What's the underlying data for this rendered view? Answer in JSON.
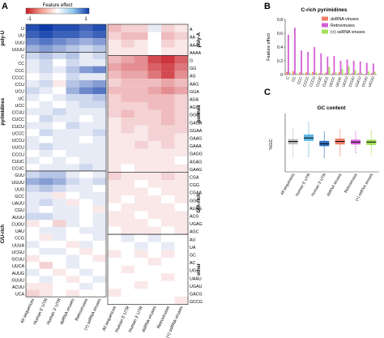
{
  "panel_letters": {
    "a": "A",
    "b": "B",
    "c": "C"
  },
  "colorbar": {
    "label": "Feature effect",
    "min_label": "-1",
    "max_label": "1"
  },
  "heatmap_columns": [
    "All sequences",
    "Human 5' UTR",
    "Human 3' UTR",
    "dsRNA viruses",
    "Retroviruses",
    "(+) ssRNA viruses"
  ],
  "chart_data": [
    {
      "type": "heatmap",
      "panel": "A-left",
      "groups": [
        {
          "label": "poly-U",
          "rows": [
            "U",
            "UU",
            "UUU",
            "UUUU"
          ]
        },
        {
          "label": "pyrimidines",
          "rows": [
            "C",
            "CC",
            "CCC",
            "CCCC",
            "CCU",
            "UCU",
            "UC",
            "UCC",
            "CCUU",
            "CUCC",
            "CUCU",
            "UCCC",
            "UCCU",
            "UUCU",
            "CCCU",
            "CUUC",
            "CCUC"
          ]
        },
        {
          "label": "C/U-rich",
          "rows": [
            "GUU",
            "UGUU",
            "UUG",
            "GCC",
            "UAUU",
            "CGU",
            "AUUU",
            "CUGU",
            "UAU",
            "CCG",
            "UUUA",
            "UCGU",
            "GCUU",
            "UUCA",
            "AUUG",
            "GUUU",
            "ACUU",
            "UCA"
          ]
        }
      ],
      "values": [
        [
          0.9,
          1.0,
          0.9,
          0.9,
          0.8,
          0.9
        ],
        [
          0.8,
          0.9,
          0.8,
          0.8,
          0.7,
          0.8
        ],
        [
          0.6,
          0.7,
          0.6,
          0.5,
          0.4,
          0.5
        ],
        [
          0.4,
          0.5,
          0.4,
          0.3,
          0.2,
          0.3
        ],
        [
          0.2,
          0.3,
          0.2,
          0.3,
          0.1,
          0.2
        ],
        [
          0.1,
          0.2,
          0.0,
          0.2,
          0.1,
          0.1
        ],
        [
          0.1,
          0.2,
          0.1,
          0.3,
          0.5,
          0.6
        ],
        [
          0.0,
          0.1,
          0.0,
          0.2,
          0.1,
          0.1
        ],
        [
          0.1,
          0.2,
          -0.1,
          0.3,
          0.4,
          0.5
        ],
        [
          0.2,
          0.1,
          0.0,
          0.4,
          0.6,
          0.7
        ],
        [
          0.1,
          0.0,
          0.1,
          0.2,
          0.2,
          0.3
        ],
        [
          0.0,
          0.1,
          0.0,
          0.1,
          0.2,
          0.2
        ],
        [
          0.1,
          0.1,
          0.2,
          0.1,
          0.1,
          0.1
        ],
        [
          0.0,
          0.2,
          0.1,
          0.1,
          0.0,
          0.1
        ],
        [
          0.1,
          0.1,
          0.0,
          0.2,
          0.1,
          0.1
        ],
        [
          0.0,
          0.2,
          0.1,
          0.1,
          0.1,
          0.2
        ],
        [
          0.1,
          0.0,
          0.1,
          0.1,
          0.0,
          0.1
        ],
        [
          0.1,
          0.2,
          0.1,
          0.1,
          0.1,
          0.1
        ],
        [
          0.0,
          0.1,
          0.0,
          0.1,
          0.1,
          0.1
        ],
        [
          0.1,
          0.0,
          0.1,
          0.0,
          0.1,
          0.1
        ],
        [
          0.0,
          0.1,
          0.1,
          0.1,
          0.2,
          0.1
        ],
        [
          0.2,
          0.3,
          0.3,
          0.1,
          0.0,
          0.1
        ],
        [
          0.4,
          0.5,
          0.4,
          0.2,
          0.1,
          0.2
        ],
        [
          0.2,
          0.3,
          0.2,
          0.1,
          0.1,
          0.0
        ],
        [
          0.1,
          0.1,
          -0.1,
          0.0,
          0.1,
          0.1
        ],
        [
          0.1,
          0.2,
          0.1,
          -0.1,
          0.0,
          0.1
        ],
        [
          0.1,
          0.0,
          0.1,
          0.1,
          0.0,
          -0.1
        ],
        [
          0.2,
          0.2,
          0.1,
          0.1,
          0.0,
          0.1
        ],
        [
          -0.1,
          0.0,
          -0.2,
          0.1,
          0.0,
          0.1
        ],
        [
          0.0,
          0.1,
          0.1,
          0.0,
          0.1,
          0.1
        ],
        [
          0.0,
          -0.1,
          0.1,
          0.0,
          0.0,
          0.1
        ],
        [
          0.1,
          0.0,
          0.0,
          -0.1,
          0.1,
          0.0
        ],
        [
          0.0,
          0.1,
          0.1,
          0.0,
          -0.1,
          0.0
        ],
        [
          -0.1,
          0.0,
          0.0,
          0.1,
          0.0,
          -0.1
        ],
        [
          0.0,
          -0.2,
          0.0,
          0.1,
          0.0,
          0.0
        ],
        [
          0.1,
          0.0,
          -0.1,
          0.0,
          0.1,
          0.0
        ],
        [
          0.0,
          0.1,
          0.0,
          -0.1,
          0.0,
          0.1
        ],
        [
          -0.1,
          -0.1,
          0.0,
          0.0,
          0.1,
          0.0
        ],
        [
          -0.2,
          -0.1,
          0.0,
          -0.1,
          0.0,
          0.0
        ]
      ]
    },
    {
      "type": "heatmap",
      "panel": "A-right",
      "groups": [
        {
          "label": "poly-A",
          "rows": [
            "A",
            "AA",
            "AAA",
            "AAAA"
          ]
        },
        {
          "label": "purines",
          "rows": [
            "G",
            "GG",
            "AG",
            "AAG",
            "GGA",
            "AGA",
            "AGG",
            "GGG",
            "GAGA",
            "GGAA",
            "GAAG",
            "GAAA",
            "GAGG",
            "AGAG",
            "GAAG"
          ]
        },
        {
          "label": "G/A-rich",
          "rows": [
            "CGA",
            "CGG",
            "CGAA",
            "GGC",
            "AUAG",
            "ACG",
            "UGAG",
            "AGC"
          ]
        },
        {
          "label": "other",
          "rows": [
            "AU",
            "UA",
            "GC",
            "AC",
            "UG",
            "UAAU",
            "UGAU",
            "GACG",
            "GCCG"
          ]
        }
      ],
      "values": [
        [
          -0.3,
          -0.2,
          -0.2,
          0.1,
          -0.2,
          -0.1
        ],
        [
          -0.2,
          -0.3,
          -0.3,
          0.0,
          -0.3,
          -0.2
        ],
        [
          -0.1,
          -0.2,
          -0.1,
          0.0,
          -0.2,
          -0.1
        ],
        [
          -0.1,
          -0.1,
          -0.1,
          0.0,
          -0.1,
          -0.1
        ],
        [
          -0.3,
          -0.4,
          -0.5,
          -0.8,
          -0.9,
          -0.7
        ],
        [
          -0.4,
          -0.5,
          -0.5,
          -0.7,
          -0.8,
          -0.6
        ],
        [
          -0.3,
          -0.4,
          -0.4,
          -0.6,
          -0.8,
          -0.5
        ],
        [
          -0.2,
          -0.3,
          -0.3,
          -0.3,
          -0.4,
          -0.3
        ],
        [
          -0.3,
          -0.3,
          -0.3,
          -0.4,
          -0.5,
          -0.4
        ],
        [
          -0.2,
          -0.3,
          -0.3,
          -0.3,
          -0.3,
          -0.2
        ],
        [
          -0.2,
          -0.2,
          -0.2,
          -0.3,
          -0.3,
          -0.2
        ],
        [
          -0.2,
          -0.3,
          -0.2,
          -0.2,
          -0.3,
          -0.2
        ],
        [
          -0.1,
          -0.2,
          -0.2,
          -0.2,
          -0.3,
          -0.2
        ],
        [
          -0.1,
          -0.2,
          -0.1,
          -0.2,
          -0.2,
          -0.2
        ],
        [
          -0.1,
          -0.1,
          -0.1,
          -0.2,
          -0.2,
          -0.1
        ],
        [
          -0.1,
          -0.1,
          -0.2,
          -0.1,
          -0.2,
          -0.1
        ],
        [
          -0.1,
          -0.1,
          -0.1,
          -0.1,
          -0.1,
          -0.1
        ],
        [
          -0.1,
          -0.1,
          -0.1,
          -0.1,
          -0.1,
          0.0
        ],
        [
          -0.1,
          0.0,
          -0.1,
          -0.1,
          -0.1,
          -0.1
        ],
        [
          -0.2,
          -0.1,
          -0.1,
          -0.1,
          -0.2,
          -0.1
        ],
        [
          -0.1,
          -0.1,
          0.0,
          -0.1,
          -0.1,
          -0.1
        ],
        [
          -0.1,
          -0.1,
          -0.1,
          0.0,
          -0.1,
          -0.1
        ],
        [
          -0.1,
          0.0,
          -0.1,
          -0.1,
          0.0,
          -0.1
        ],
        [
          0.0,
          -0.1,
          -0.1,
          -0.1,
          -0.1,
          0.0
        ],
        [
          -0.1,
          -0.1,
          0.0,
          -0.1,
          -0.1,
          -0.1
        ],
        [
          -0.1,
          -0.1,
          -0.1,
          0.0,
          -0.1,
          -0.1
        ],
        [
          0.0,
          -0.1,
          -0.1,
          -0.1,
          0.0,
          -0.1
        ],
        [
          0.0,
          0.1,
          0.0,
          0.1,
          0.0,
          0.0
        ],
        [
          0.0,
          0.0,
          0.1,
          0.0,
          0.1,
          0.0
        ],
        [
          -0.1,
          0.0,
          -0.1,
          0.0,
          -0.1,
          0.0
        ],
        [
          0.0,
          0.0,
          0.0,
          -0.1,
          0.0,
          0.0
        ],
        [
          0.0,
          -0.1,
          0.0,
          0.0,
          0.0,
          0.0
        ],
        [
          0.0,
          0.0,
          0.0,
          0.0,
          -0.1,
          0.0
        ],
        [
          0.0,
          0.0,
          -0.1,
          0.0,
          0.0,
          0.0
        ],
        [
          -0.1,
          0.0,
          0.0,
          0.0,
          0.0,
          0.0
        ],
        [
          0.0,
          0.0,
          0.0,
          0.0,
          0.0,
          -0.1
        ]
      ]
    },
    {
      "type": "bar",
      "panel": "B",
      "title": "C-rich pyrimidines",
      "ylabel": "Feature effect",
      "ylim": [
        0,
        0.8
      ],
      "yticks": [
        0,
        0.2,
        0.4,
        0.6,
        0.8
      ],
      "legend_position": "top-right",
      "categories": [
        "C",
        "CC",
        "CCC",
        "CCCC",
        "CCCU",
        "CCUC",
        "CUCC",
        "UCCC",
        "UCUC",
        "UCCU",
        "CCUU",
        "CUCU",
        "CCUU",
        "UCUU"
      ],
      "series": [
        {
          "name": "dsRNA viruses",
          "color": "#f07f6a",
          "values": [
            0.04,
            0.05,
            0.03,
            0.03,
            0.04,
            0.02,
            0.03,
            0.02,
            0.03,
            0.02,
            0.02,
            0.02,
            0.01,
            0.02
          ]
        },
        {
          "name": "Retroviruses",
          "color": "#d460d6",
          "values": [
            0.58,
            0.68,
            0.35,
            0.33,
            0.4,
            0.31,
            0.26,
            0.27,
            0.2,
            0.22,
            0.2,
            0.19,
            0.17,
            0.16
          ]
        },
        {
          "name": "(+) ssRNA viruses",
          "color": "#a6e05a",
          "values": [
            0.03,
            0.02,
            0.02,
            0.02,
            0.03,
            0.02,
            0.11,
            0.03,
            0.08,
            0.12,
            0.06,
            0.02,
            0.05,
            0.04
          ]
        }
      ]
    },
    {
      "type": "box",
      "panel": "C",
      "title": "GC content",
      "ylabel": "%GC",
      "ylim": [
        0,
        100
      ],
      "categories": [
        "All sequences",
        "Human 5' UTR",
        "Human 3' UTR",
        "dsRNA viruses",
        "Retroviruses",
        "(+) ssRNA viruses"
      ],
      "series": [
        {
          "color": "#bdbdbd",
          "whisker_low": 26,
          "q1": 47,
          "median": 52,
          "q3": 56,
          "whisker_high": 76
        },
        {
          "color": "#5db7e3",
          "whisker_low": 25,
          "q1": 53,
          "median": 58,
          "q3": 64,
          "whisker_high": 86
        },
        {
          "color": "#2b6fc0",
          "whisker_low": 24,
          "q1": 44,
          "median": 48,
          "q3": 53,
          "whisker_high": 70
        },
        {
          "color": "#f07f6a",
          "whisker_low": 27,
          "q1": 47,
          "median": 52,
          "q3": 57,
          "whisker_high": 74
        },
        {
          "color": "#d460d6",
          "whisker_low": 32,
          "q1": 47,
          "median": 51,
          "q3": 55,
          "whisker_high": 70
        },
        {
          "color": "#a6e05a",
          "whisker_low": 30,
          "q1": 46,
          "median": 51,
          "q3": 55,
          "whisker_high": 72
        }
      ]
    }
  ]
}
